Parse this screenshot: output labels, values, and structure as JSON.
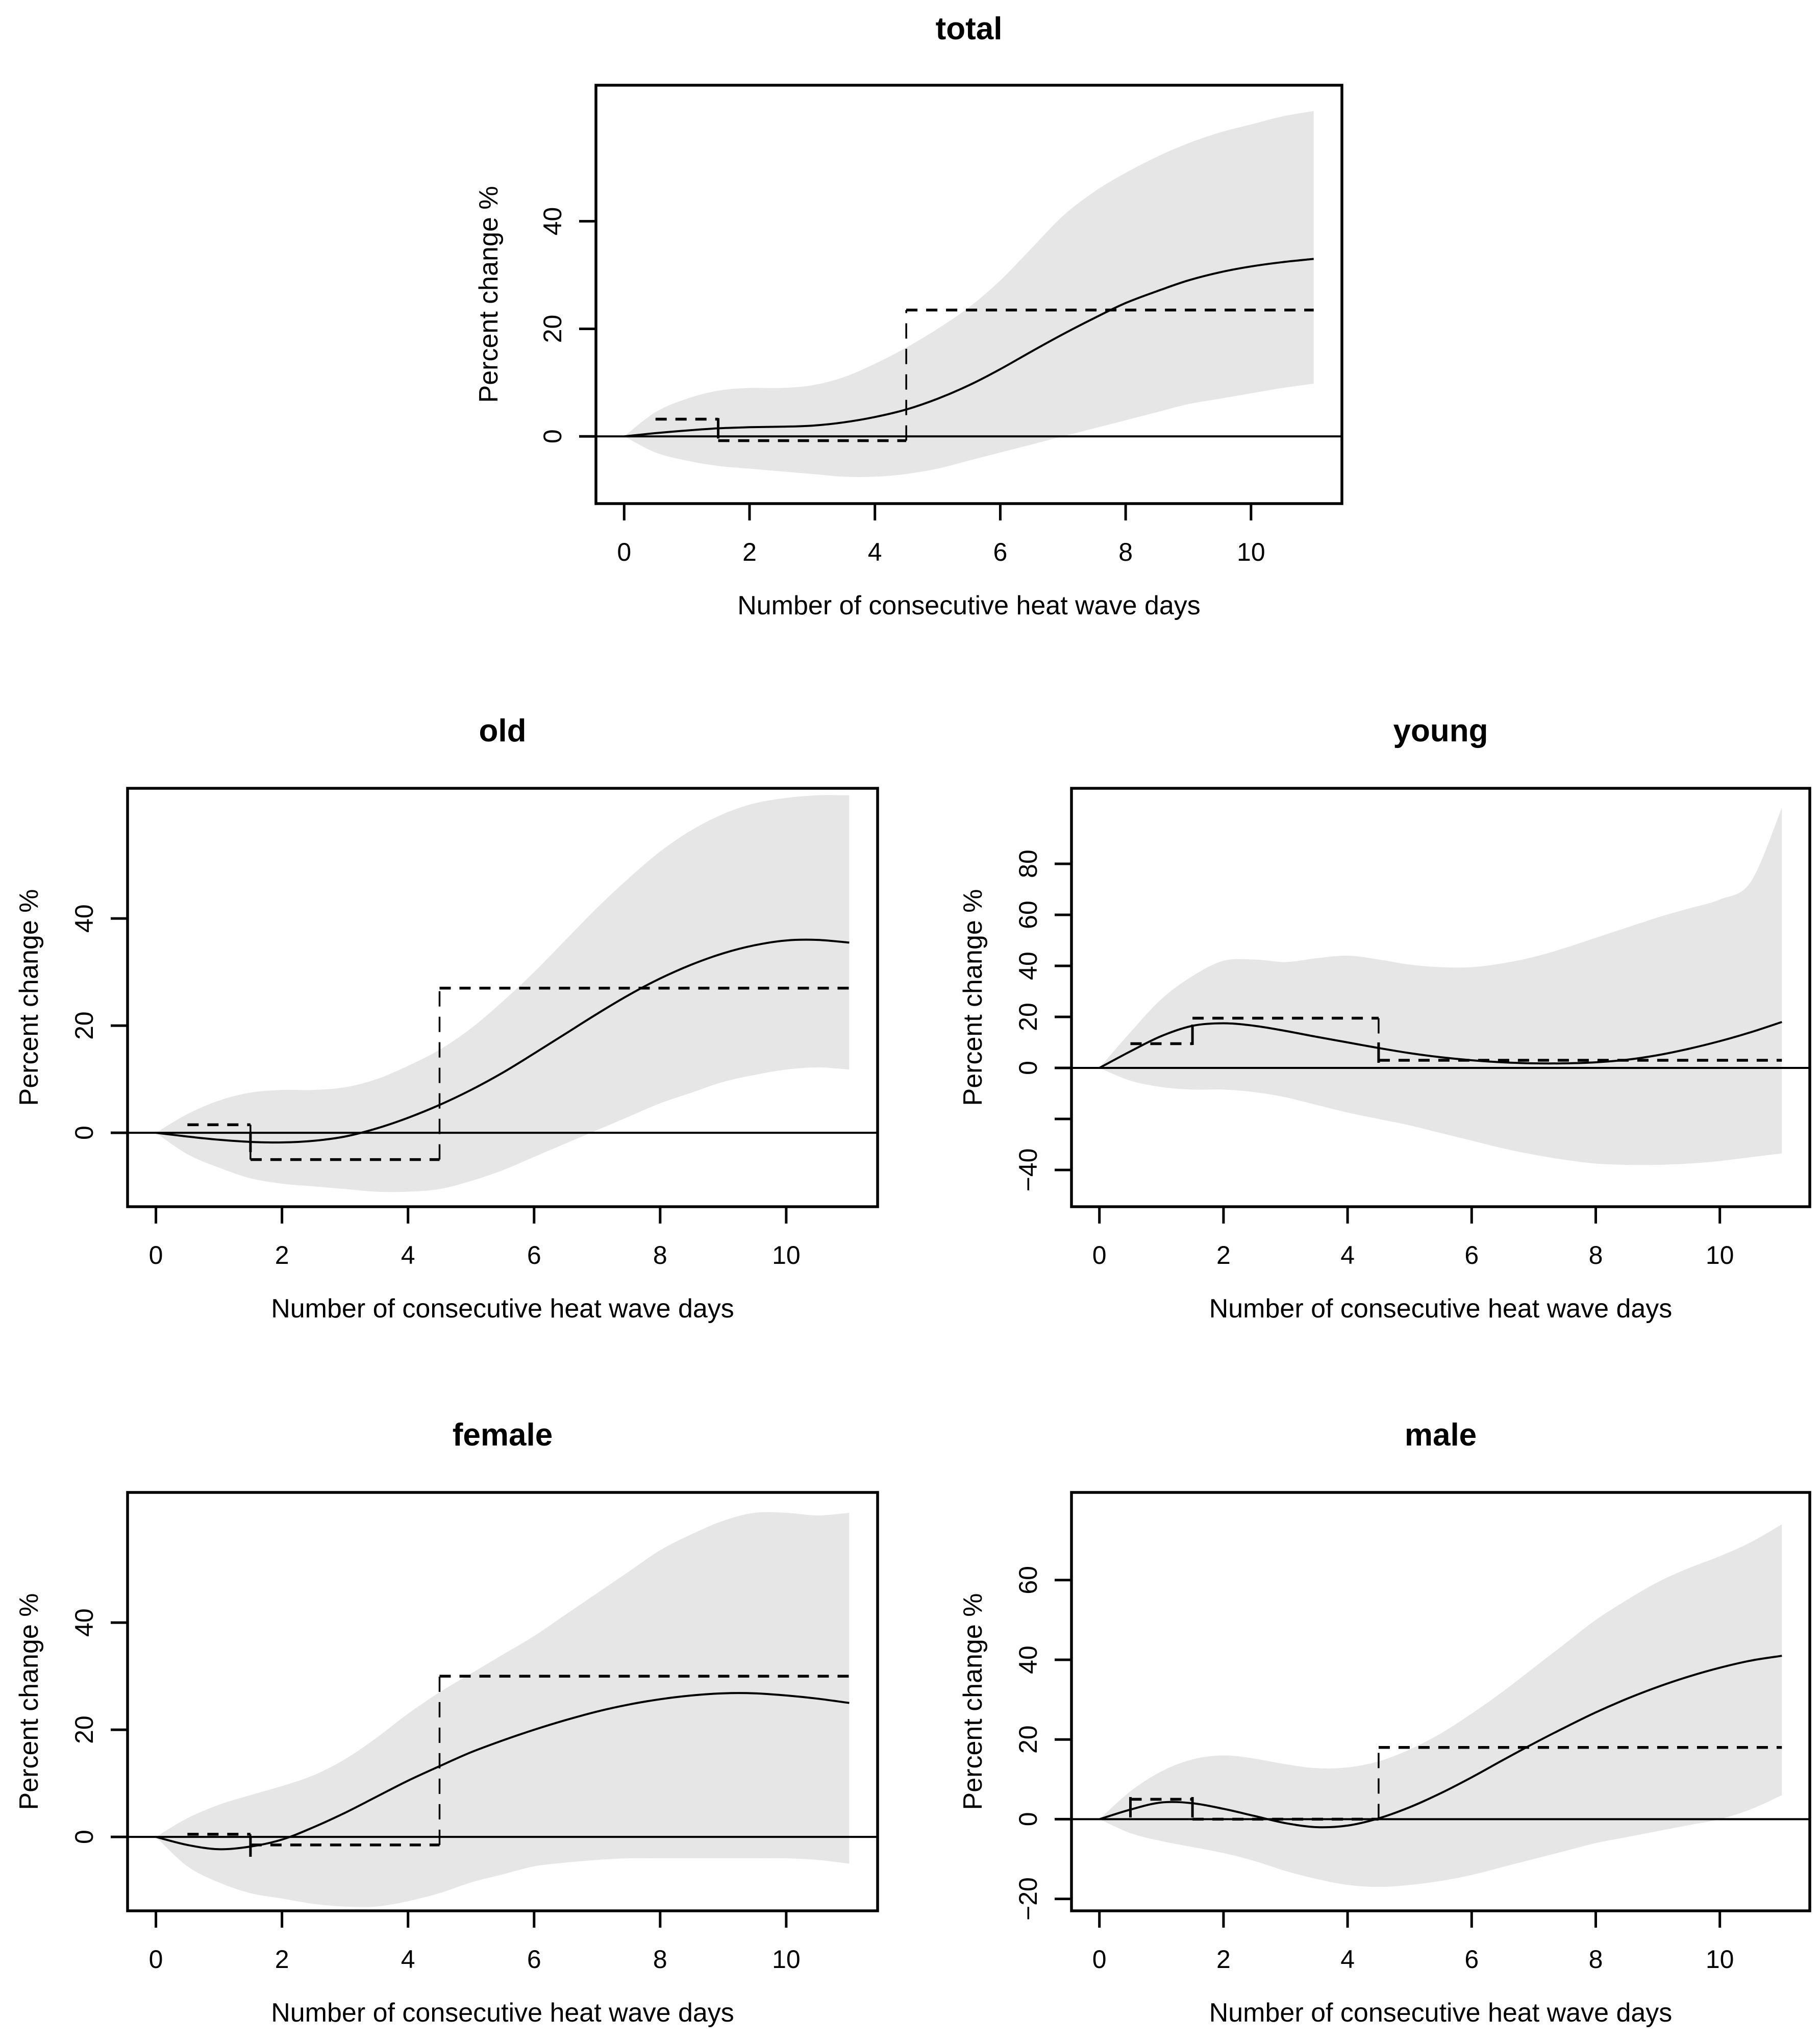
{
  "figure": {
    "background": "#ffffff",
    "line_color": "#000000",
    "band_color": "#e6e6e6"
  },
  "chart_data": [
    {
      "id": "total",
      "type": "line",
      "title": "total",
      "xlabel": "Number of consecutive heat wave days",
      "ylabel": "Percent change %",
      "xlim": [
        -0.45,
        11.45
      ],
      "ylim": [
        -12.5,
        65.3
      ],
      "xticks": {
        "values": [
          0,
          2,
          4,
          6,
          8,
          10
        ],
        "labels": [
          "0",
          "2",
          "4",
          "6",
          "8",
          "10"
        ]
      },
      "yticks": {
        "values": [
          0,
          20,
          40
        ],
        "labels": [
          "0",
          "20",
          "40"
        ]
      },
      "x": [
        0,
        0.5,
        1,
        1.5,
        2,
        2.5,
        3,
        3.5,
        4,
        4.5,
        5,
        5.5,
        6,
        6.5,
        7,
        7.5,
        8,
        8.5,
        9,
        9.5,
        10,
        10.5,
        11
      ],
      "smooth": [
        0,
        0.6,
        1.1,
        1.5,
        1.7,
        1.8,
        2.0,
        2.6,
        3.6,
        5,
        7,
        9.5,
        12.5,
        15.8,
        19,
        22,
        24.8,
        27,
        29,
        30.5,
        31.6,
        32.4,
        33
      ],
      "band_upper": [
        0,
        4.5,
        7,
        8.5,
        9,
        9,
        9.5,
        11,
        13.5,
        16.5,
        20,
        24,
        29,
        35,
        41,
        45.5,
        49,
        52,
        54.5,
        56.5,
        58,
        59.5,
        60.5
      ],
      "band_lower": [
        0,
        -3,
        -4.5,
        -5.5,
        -6,
        -6.5,
        -7,
        -7.5,
        -7.5,
        -7,
        -6,
        -4.5,
        -3,
        -1.5,
        0,
        1.5,
        3,
        4.5,
        6,
        7,
        8,
        9,
        9.8
      ],
      "step": {
        "breaks": [
          0.5,
          1.5,
          4.5,
          11
        ],
        "levels": [
          3.2,
          -0.8,
          23.5
        ]
      },
      "markers": [
        [
          1.5,
          1.5
        ]
      ],
      "zero_line": 0
    },
    {
      "id": "old",
      "type": "line",
      "title": "old",
      "xlabel": "Number of consecutive heat wave days",
      "ylabel": "Percent change %",
      "xlim": [
        -0.45,
        11.45
      ],
      "ylim": [
        -13.8,
        64.3
      ],
      "xticks": {
        "values": [
          0,
          2,
          4,
          6,
          8,
          10
        ],
        "labels": [
          "0",
          "2",
          "4",
          "6",
          "8",
          "10"
        ]
      },
      "yticks": {
        "values": [
          0,
          20,
          40
        ],
        "labels": [
          "0",
          "20",
          "40"
        ]
      },
      "x": [
        0,
        0.5,
        1,
        1.5,
        2,
        2.5,
        3,
        3.5,
        4,
        4.5,
        5,
        5.5,
        6,
        6.5,
        7,
        7.5,
        8,
        8.5,
        9,
        9.5,
        10,
        10.5,
        11
      ],
      "smooth": [
        0,
        -0.7,
        -1.3,
        -1.7,
        -1.8,
        -1.5,
        -0.7,
        0.8,
        2.8,
        5.2,
        8,
        11.2,
        14.8,
        18.5,
        22.2,
        25.7,
        28.8,
        31.4,
        33.5,
        35,
        35.9,
        36,
        35.5
      ],
      "band_upper": [
        0,
        3.5,
        6,
        7.5,
        8,
        8,
        8.5,
        10,
        12.5,
        15.5,
        19.5,
        24.5,
        30,
        36,
        42,
        47.5,
        52.5,
        56.5,
        59.5,
        61.5,
        62.5,
        63,
        63
      ],
      "band_lower": [
        0,
        -4,
        -6.5,
        -8.5,
        -9.5,
        -10,
        -10.5,
        -11,
        -11,
        -10.5,
        -9,
        -7,
        -4.5,
        -2,
        0.5,
        3,
        5.5,
        7.5,
        9.5,
        10.8,
        11.8,
        12.2,
        11.8
      ],
      "step": {
        "breaks": [
          0.5,
          1.5,
          4.5,
          11
        ],
        "levels": [
          1.5,
          -5,
          27
        ]
      },
      "markers": [
        [
          1.5,
          -1.7
        ]
      ],
      "zero_line": 0
    },
    {
      "id": "young",
      "type": "line",
      "title": "young",
      "xlabel": "Number of consecutive heat wave days",
      "ylabel": "Percent change %",
      "xlim": [
        -0.45,
        11.45
      ],
      "ylim": [
        -54.4,
        109.6
      ],
      "xticks": {
        "values": [
          0,
          2,
          4,
          6,
          8,
          10
        ],
        "labels": [
          "0",
          "2",
          "4",
          "6",
          "8",
          "10"
        ]
      },
      "yticks": {
        "values": [
          -40,
          -20,
          0,
          20,
          40,
          60,
          80
        ],
        "labels": [
          "−40",
          "",
          "0",
          "20",
          "40",
          "60",
          "80"
        ]
      },
      "x": [
        0,
        0.5,
        1,
        1.5,
        2,
        2.5,
        3,
        3.5,
        4,
        4.5,
        5,
        5.5,
        6,
        6.5,
        7,
        7.5,
        8,
        8.5,
        9,
        9.5,
        10,
        10.5,
        11
      ],
      "smooth": [
        0,
        6.5,
        12.5,
        16.5,
        17.5,
        16.5,
        14.5,
        12.2,
        10,
        7.8,
        5.8,
        4.2,
        3,
        2.2,
        1.8,
        1.8,
        2.2,
        3.2,
        5,
        7.5,
        10.5,
        14,
        18
      ],
      "band_upper": [
        0,
        14,
        27,
        36,
        42,
        42.5,
        41.5,
        43,
        44,
        42.5,
        40.5,
        39.5,
        39.5,
        41,
        43.5,
        47,
        51,
        55,
        59,
        62.5,
        66,
        73,
        102
      ],
      "band_lower": [
        0,
        -5,
        -7.5,
        -8.5,
        -8.5,
        -9.5,
        -11.5,
        -14.5,
        -17.5,
        -20,
        -22.5,
        -25.5,
        -28.5,
        -31.5,
        -34,
        -36,
        -37.5,
        -38,
        -38,
        -37.5,
        -36.5,
        -35,
        -33.5
      ],
      "step": {
        "breaks": [
          0.5,
          1.5,
          4.5,
          11
        ],
        "levels": [
          9.5,
          19.5,
          3
        ]
      },
      "markers": [
        [
          1.5,
          13
        ],
        [
          4.5,
          6
        ]
      ],
      "zero_line": 0
    },
    {
      "id": "female",
      "type": "line",
      "title": "female",
      "xlabel": "Number of consecutive heat wave days",
      "ylabel": "Percent change %",
      "xlim": [
        -0.45,
        11.45
      ],
      "ylim": [
        -13.8,
        64.3
      ],
      "xticks": {
        "values": [
          0,
          2,
          4,
          6,
          8,
          10
        ],
        "labels": [
          "0",
          "2",
          "4",
          "6",
          "8",
          "10"
        ]
      },
      "yticks": {
        "values": [
          0,
          20,
          40
        ],
        "labels": [
          "0",
          "20",
          "40"
        ]
      },
      "x": [
        0,
        0.5,
        1,
        1.5,
        2,
        2.5,
        3,
        3.5,
        4,
        4.5,
        5,
        5.5,
        6,
        6.5,
        7,
        7.5,
        8,
        8.5,
        9,
        9.5,
        10,
        10.5,
        11
      ],
      "smooth": [
        0,
        -1.5,
        -2.3,
        -1.8,
        -0.5,
        1.8,
        4.5,
        7.5,
        10.5,
        13.2,
        15.8,
        18,
        20,
        21.8,
        23.4,
        24.7,
        25.7,
        26.4,
        26.8,
        26.8,
        26.4,
        25.8,
        25
      ],
      "band_upper": [
        0,
        3.5,
        6,
        7.8,
        9.5,
        11.5,
        14.5,
        18.5,
        23,
        27,
        30.5,
        34,
        37.5,
        41.5,
        45.5,
        49.5,
        53.5,
        56.5,
        59,
        60.5,
        60.5,
        60,
        60.5
      ],
      "band_lower": [
        0,
        -5.5,
        -8.5,
        -10.5,
        -11.5,
        -12.5,
        -13,
        -13,
        -12,
        -10.5,
        -8.5,
        -7,
        -5.5,
        -4.8,
        -4.3,
        -4,
        -4,
        -4,
        -4,
        -4,
        -4,
        -4.3,
        -5
      ],
      "step": {
        "breaks": [
          0.5,
          1.5,
          4.5,
          11
        ],
        "levels": [
          0.5,
          -1.5,
          30
        ]
      },
      "markers": [
        [
          1.5,
          -1.8
        ]
      ],
      "zero_line": 0
    },
    {
      "id": "male",
      "type": "line",
      "title": "male",
      "xlabel": "Number of consecutive heat wave days",
      "ylabel": "Percent change %",
      "xlim": [
        -0.45,
        11.45
      ],
      "ylim": [
        -23,
        82
      ],
      "xticks": {
        "values": [
          0,
          2,
          4,
          6,
          8,
          10
        ],
        "labels": [
          "0",
          "2",
          "4",
          "6",
          "8",
          "10"
        ]
      },
      "yticks": {
        "values": [
          -20,
          0,
          20,
          40,
          60
        ],
        "labels": [
          "−20",
          "0",
          "20",
          "40",
          "60"
        ]
      },
      "x": [
        0,
        0.5,
        1,
        1.5,
        2,
        2.5,
        3,
        3.5,
        4,
        4.5,
        5,
        5.5,
        6,
        6.5,
        7,
        7.5,
        8,
        8.5,
        9,
        9.5,
        10,
        10.5,
        11
      ],
      "smooth": [
        0,
        2.4,
        4.2,
        4.0,
        2.6,
        0.8,
        -1.0,
        -2.0,
        -1.6,
        0.2,
        3,
        6.5,
        10.5,
        14.8,
        19,
        23,
        26.8,
        30.2,
        33.2,
        35.8,
        38,
        39.8,
        41
      ],
      "band_upper": [
        0,
        7,
        12,
        15,
        16,
        15.2,
        13.8,
        12.8,
        13,
        14.5,
        17.5,
        21.5,
        26.5,
        32,
        38,
        44,
        50,
        55,
        59.5,
        63,
        66,
        69.5,
        74
      ],
      "band_lower": [
        0,
        -3.5,
        -5.5,
        -7,
        -8.5,
        -10.5,
        -13,
        -15,
        -16.5,
        -17,
        -16.5,
        -15.5,
        -14,
        -12,
        -10,
        -8,
        -6,
        -4.5,
        -3,
        -1.5,
        0,
        2.5,
        6
      ],
      "step": {
        "breaks": [
          0.5,
          1.5,
          4.5,
          11
        ],
        "levels": [
          5,
          0,
          18
        ]
      },
      "markers": [
        [
          0.5,
          3
        ],
        [
          1.5,
          3
        ]
      ],
      "zero_line": 0
    }
  ]
}
